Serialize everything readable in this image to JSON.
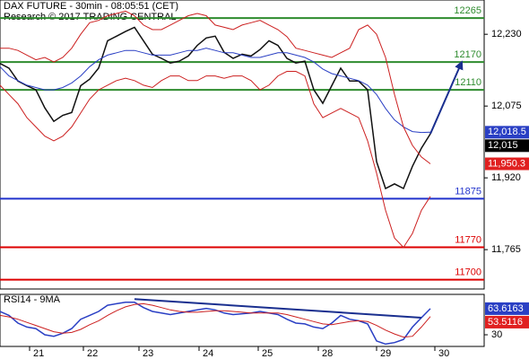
{
  "chart_data": [
    {
      "type": "line",
      "title": "DAX FUTURE - 30min - 08:05:51 (CET)",
      "subtitle": "Research © 2017 TRADING CENTRAL",
      "x": [
        0,
        1,
        2,
        3,
        4,
        5,
        6,
        7,
        8,
        9,
        10,
        11,
        12,
        13,
        14,
        15,
        16,
        17,
        18,
        19,
        20,
        21,
        22,
        23,
        24,
        25,
        26,
        27,
        28,
        29,
        30,
        31,
        32,
        33,
        34,
        35,
        36,
        37,
        38,
        39,
        40,
        41,
        42,
        43,
        44,
        45,
        46,
        47,
        48
      ],
      "xlim": [
        0,
        54
      ],
      "ylim": [
        11680,
        12304
      ],
      "yticks": [
        {
          "value": 12230,
          "label": "12,230"
        },
        {
          "value": 12075,
          "label": "12,075"
        },
        {
          "value": 11920,
          "label": "11,920"
        },
        {
          "value": 11765,
          "label": "11,765"
        }
      ],
      "series": [
        {
          "color": "#111111",
          "values": [
            12167,
            12157,
            12129,
            12119,
            12110,
            12071,
            12042,
            12055,
            12061,
            12119,
            12133,
            12157,
            12216,
            12226,
            12236,
            12245,
            12216,
            12187,
            12178,
            12168,
            12172,
            12183,
            12206,
            12222,
            12226,
            12191,
            12178,
            12187,
            12183,
            12197,
            12216,
            12206,
            12178,
            12168,
            12172,
            12110,
            12081,
            12119,
            12157,
            12129,
            12129,
            12110,
            11955,
            11897,
            11907,
            11897,
            11945,
            11984,
            12015
          ]
        },
        {
          "color": "#2a3fc4",
          "values": [
            12160,
            12140,
            12130,
            12120,
            12115,
            12110,
            12110,
            12115,
            12125,
            12140,
            12160,
            12175,
            12185,
            12190,
            12195,
            12195,
            12190,
            12185,
            12185,
            12185,
            12190,
            12195,
            12195,
            12200,
            12195,
            12190,
            12190,
            12185,
            12180,
            12180,
            12185,
            12190,
            12190,
            12185,
            12180,
            12170,
            12155,
            12145,
            12140,
            12135,
            12130,
            12120,
            12100,
            12070,
            12045,
            12030,
            12020,
            12018,
            12018.5
          ]
        },
        {
          "color": "#cc2020",
          "values": [
            12200,
            12200,
            12195,
            12185,
            12175,
            12180,
            12170,
            12180,
            12200,
            12230,
            12255,
            12260,
            12270,
            12275,
            12280,
            12270,
            12250,
            12240,
            12240,
            12250,
            12260,
            12270,
            12275,
            12270,
            12250,
            12245,
            12240,
            12250,
            12255,
            12260,
            12250,
            12240,
            12225,
            12200,
            12195,
            12190,
            12185,
            12180,
            12190,
            12200,
            12240,
            12250,
            12230,
            12180,
            12100,
            12030,
            11990,
            11965,
            11950.3
          ]
        },
        {
          "color": "#cc2020",
          "values": [
            12120,
            12100,
            12080,
            12050,
            12030,
            12010,
            12000,
            12010,
            12030,
            12060,
            12090,
            12110,
            12120,
            12130,
            12135,
            12130,
            12120,
            12115,
            12130,
            12140,
            12140,
            12130,
            12130,
            12140,
            12140,
            12135,
            12140,
            12140,
            12130,
            12110,
            12120,
            12140,
            12150,
            12150,
            12140,
            12080,
            12050,
            12060,
            12070,
            12060,
            12050,
            12000,
            11930,
            11850,
            11790,
            11770,
            11800,
            11850,
            11880
          ]
        }
      ],
      "levels": [
        {
          "value": 12265,
          "color": "#2e8b2e"
        },
        {
          "value": 12170,
          "color": "#2e8b2e"
        },
        {
          "value": 12110,
          "color": "#2e8b2e"
        },
        {
          "value": 11875,
          "color": "#2233cc"
        },
        {
          "value": 11770,
          "color": "#dd0000"
        },
        {
          "value": 11700,
          "color": "#dd0000"
        }
      ],
      "trendline": {
        "x": [
          48,
          51.5
        ],
        "values": [
          12015,
          12170
        ],
        "color": "#1a2f8f",
        "arrow": true
      },
      "markers": [
        {
          "value": 12018.5,
          "label": "12,018.5",
          "color": "#2a3fc4"
        },
        {
          "value": 12015,
          "label": "12,015",
          "color": "#000000"
        },
        {
          "value": 11950.3,
          "label": "11,950.3",
          "color": "#e02020"
        }
      ]
    },
    {
      "type": "line",
      "title": "RSI14 - 9MA",
      "x": [
        0,
        1,
        2,
        3,
        4,
        5,
        6,
        7,
        8,
        9,
        10,
        11,
        12,
        13,
        14,
        15,
        16,
        17,
        18,
        19,
        20,
        21,
        22,
        23,
        24,
        25,
        26,
        27,
        28,
        29,
        30,
        31,
        32,
        33,
        34,
        35,
        36,
        37,
        38,
        39,
        40,
        41,
        42,
        43,
        44,
        45,
        46,
        47,
        48
      ],
      "xlim": [
        0,
        54
      ],
      "ylim": [
        15,
        82
      ],
      "yticks": [
        30
      ],
      "xticks": [
        {
          "value": 3.3,
          "label": "21"
        },
        {
          "value": 9.3,
          "label": "22"
        },
        {
          "value": 15.5,
          "label": "23"
        },
        {
          "value": 22.2,
          "label": "24"
        },
        {
          "value": 28.8,
          "label": "25"
        },
        {
          "value": 35.5,
          "label": "28"
        },
        {
          "value": 42,
          "label": "29"
        },
        {
          "value": 48.5,
          "label": "30"
        }
      ],
      "series": [
        {
          "color": "#2a3fc4",
          "values": [
            60,
            55,
            45,
            40,
            38,
            30,
            28,
            32,
            38,
            50,
            55,
            60,
            68,
            70,
            72,
            72,
            65,
            60,
            58,
            56,
            58,
            60,
            62,
            64,
            62,
            58,
            56,
            57,
            58,
            60,
            58,
            56,
            50,
            45,
            44,
            40,
            38,
            45,
            55,
            50,
            48,
            44,
            22,
            18,
            20,
            24,
            40,
            52,
            63.6163
          ]
        },
        {
          "color": "#cc2020",
          "values": [
            55,
            53,
            50,
            46,
            42,
            38,
            34,
            32,
            33,
            37,
            43,
            48,
            55,
            61,
            66,
            69,
            70,
            68,
            65,
            62,
            60,
            59,
            59,
            60,
            61,
            61,
            60,
            59,
            58,
            58,
            58,
            58,
            56,
            53,
            50,
            47,
            44,
            43,
            45,
            47,
            48,
            47,
            42,
            36,
            31,
            27,
            28,
            40,
            53.5116
          ]
        }
      ],
      "trendline": {
        "x": [
          15,
          47
        ],
        "values": [
          76,
          52
        ],
        "color": "#1a2f8f",
        "arrow": false
      },
      "markers": [
        {
          "value": 63.6163,
          "color": "#2a3fc4"
        },
        {
          "value": 53.5116,
          "color": "#e02020"
        }
      ]
    }
  ]
}
